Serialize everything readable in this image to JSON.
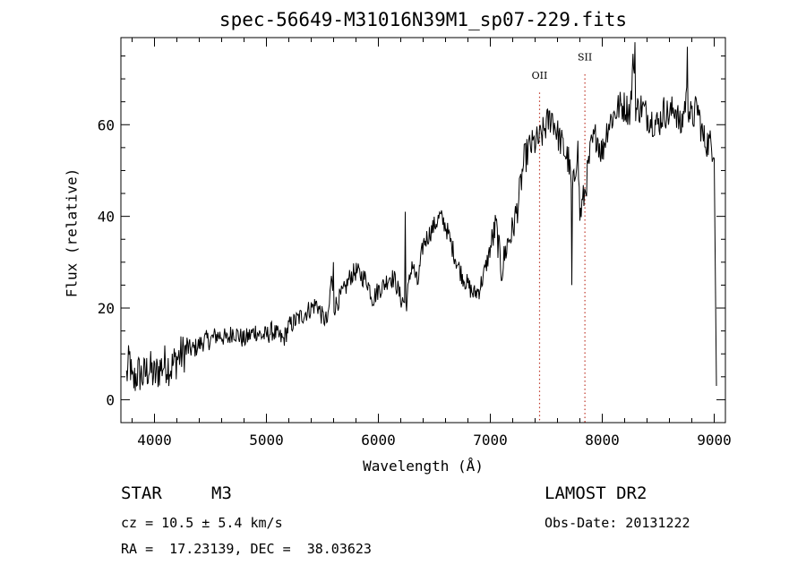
{
  "chart_data": {
    "type": "line",
    "title": "spec-56649-M31016N39M1_sp07-229.fits",
    "xlabel": "Wavelength (Å)",
    "ylabel": "Flux (relative)",
    "xlim": [
      3700,
      9100
    ],
    "ylim": [
      -5,
      79
    ],
    "xticks": [
      4000,
      5000,
      6000,
      7000,
      8000,
      9000
    ],
    "yticks": [
      0,
      20,
      40,
      60
    ],
    "grid": false,
    "line_color": "#000000",
    "annotations": [
      {
        "label": "OII",
        "wavelength": 7440,
        "label_y": 70,
        "color": "#c0392b"
      },
      {
        "label": "SII",
        "wavelength": 7845,
        "label_y": 74,
        "color": "#c0392b"
      }
    ],
    "x": [
      3750,
      3780,
      3800,
      3850,
      3900,
      3950,
      4000,
      4050,
      4100,
      4150,
      4200,
      4250,
      4300,
      4350,
      4400,
      4450,
      4500,
      4550,
      4600,
      4650,
      4700,
      4750,
      4800,
      4850,
      4900,
      4950,
      5000,
      5050,
      5100,
      5150,
      5200,
      5250,
      5300,
      5350,
      5400,
      5450,
      5500,
      5550,
      5580,
      5600,
      5650,
      5700,
      5750,
      5800,
      5850,
      5900,
      5950,
      6000,
      6050,
      6100,
      6150,
      6200,
      6250,
      6300,
      6350,
      6400,
      6450,
      6500,
      6550,
      6600,
      6650,
      6700,
      6750,
      6800,
      6850,
      6900,
      6950,
      7000,
      7050,
      7100,
      7150,
      7200,
      7250,
      7300,
      7350,
      7400,
      7450,
      7500,
      7550,
      7600,
      7650,
      7700,
      7730,
      7750,
      7780,
      7800,
      7850,
      7900,
      7950,
      7980,
      8000,
      8050,
      8100,
      8150,
      8200,
      8250,
      8280,
      8300,
      8350,
      8400,
      8450,
      8500,
      8550,
      8600,
      8650,
      8700,
      8750,
      8780,
      8800,
      8850,
      8900,
      8950,
      9000,
      9020
    ],
    "y": [
      5,
      9,
      3,
      6,
      5,
      7,
      5,
      7,
      8,
      7,
      9,
      10,
      11,
      11,
      12,
      13,
      13,
      14,
      14,
      13,
      15,
      14,
      13,
      14,
      15,
      14,
      14,
      15,
      14,
      13,
      16,
      17,
      18,
      19,
      20,
      21,
      18,
      17,
      27,
      20,
      22,
      24,
      27,
      28,
      27,
      26,
      22,
      24,
      25,
      27,
      26,
      22,
      21,
      30,
      25,
      34,
      36,
      38,
      40,
      38,
      34,
      30,
      27,
      25,
      23,
      24,
      28,
      33,
      38,
      28,
      34,
      37,
      43,
      52,
      55,
      56,
      57,
      60,
      62,
      58,
      55,
      52,
      45,
      48,
      56,
      40,
      46,
      55,
      58,
      55,
      54,
      60,
      62,
      64,
      64,
      63,
      75,
      63,
      64,
      62,
      61,
      60,
      63,
      62,
      64,
      59,
      66,
      63,
      61,
      64,
      57,
      56,
      55,
      3
    ],
    "spikes": [
      {
        "x": 7730,
        "y": 25
      },
      {
        "x": 8290,
        "y": 78
      },
      {
        "x": 8760,
        "y": 77
      },
      {
        "x": 5600,
        "y": 30
      },
      {
        "x": 6240,
        "y": 41
      }
    ]
  },
  "info": {
    "object_type": "STAR",
    "subclass": "M3",
    "survey": "LAMOST DR2",
    "cz": "cz = 10.5 ± 5.4 km/s",
    "obs_date": "Obs-Date: 20131222",
    "coords": "RA =  17.23139, DEC =  38.03623"
  }
}
